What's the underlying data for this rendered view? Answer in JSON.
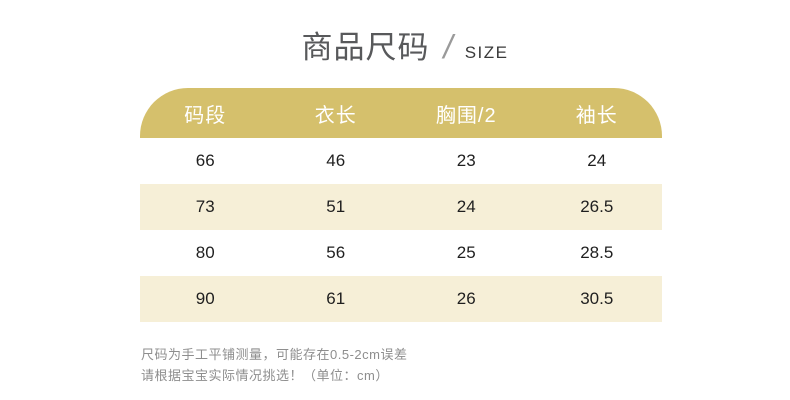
{
  "title": {
    "text": "商品尺码",
    "separator": "/",
    "subtitle": "SIZE"
  },
  "chart_data": {
    "type": "table",
    "title": "商品尺码 / SIZE",
    "columns": [
      "码段",
      "衣长",
      "胸围/2",
      "袖长"
    ],
    "rows": [
      [
        "66",
        "46",
        "23",
        "24"
      ],
      [
        "73",
        "51",
        "24",
        "26.5"
      ],
      [
        "80",
        "56",
        "25",
        "28.5"
      ],
      [
        "90",
        "61",
        "26",
        "30.5"
      ]
    ],
    "unit": "cm"
  },
  "footnote": {
    "line1": "尺码为手工平铺测量，可能存在0.5-2cm误差",
    "line2": "请根据宝宝实际情况挑选！（单位：cm）"
  },
  "colors": {
    "page_bg": "#ffffff",
    "header_bg": "#d5c06c",
    "header_text": "#ffffff",
    "row_alt_bg": "#f6efd7",
    "cell_text": "#1f1f1f",
    "title_text": "#58595b",
    "subtitle_text": "#3a3a3a",
    "slash_color": "#9a9a9a",
    "footnote_text": "#8e8e8e"
  }
}
